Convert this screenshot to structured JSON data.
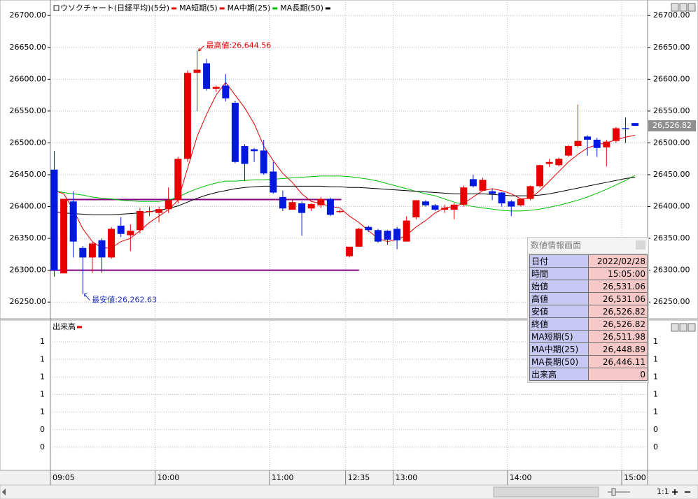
{
  "chart_data": {
    "type": "candlestick",
    "title": "ロウソクチャート(日経平均)(5分)",
    "up_color": "#e80000",
    "down_color": "#0018e0",
    "categories": [
      "09:05",
      null,
      null,
      null,
      null,
      null,
      null,
      null,
      null,
      null,
      null,
      "10:00",
      null,
      null,
      null,
      null,
      null,
      null,
      null,
      null,
      null,
      null,
      null,
      "11:00",
      null,
      null,
      null,
      null,
      null,
      null,
      null,
      "12:35",
      null,
      null,
      null,
      null,
      "13:00",
      null,
      null,
      null,
      null,
      null,
      null,
      null,
      null,
      null,
      null,
      null,
      "14:00",
      null,
      null,
      null,
      null,
      null,
      null,
      null,
      null,
      null,
      null,
      null,
      "15:00",
      null
    ],
    "open": [
      26458,
      26295,
      26408,
      26335,
      26320,
      26347,
      26320,
      26370,
      26355,
      26363,
      26392,
      26390,
      26396,
      26410,
      26475,
      26610,
      26625,
      26585,
      26590,
      26563,
      26495,
      26490,
      26488,
      26455,
      26415,
      26395,
      26405,
      26397,
      26402,
      26412,
      26392,
      26322,
      26337,
      26368,
      26363,
      26362,
      26365,
      26345,
      26383,
      26408,
      26402,
      26395,
      26395,
      26403,
      26443,
      26425,
      26424,
      26422,
      26408,
      26402,
      26412,
      26432,
      26467,
      26465,
      26480,
      26495,
      26510,
      26505,
      26493,
      26503,
      26523,
      26531.06
    ],
    "high": [
      26487,
      26412,
      26424,
      26338,
      26345,
      26350,
      26368,
      26383,
      26372,
      26398,
      26400,
      26400,
      26430,
      26478,
      26614,
      26644.56,
      26632,
      26590,
      26608,
      26566,
      26498,
      26492,
      26505,
      26470,
      26425,
      26410,
      26408,
      26405,
      26415,
      26414,
      26395,
      26337,
      26367,
      26370,
      26365,
      26363,
      26368,
      26385,
      26410,
      26410,
      26404,
      26403,
      26405,
      26433,
      26450,
      26445,
      26428,
      26423,
      26410,
      26413,
      26433,
      26466,
      26475,
      26477,
      26497,
      26560,
      26512,
      26508,
      26505,
      26525,
      26540,
      26531.06
    ],
    "low": [
      26290,
      26295,
      26320,
      26262.63,
      26296,
      26296,
      26318,
      26352,
      26330,
      26358,
      26385,
      26375,
      26390,
      26405,
      26470,
      26550,
      26582,
      26580,
      26565,
      26468,
      26440,
      26470,
      26450,
      26420,
      26393,
      26395,
      26354,
      26393,
      26398,
      26385,
      26390,
      26320,
      26337,
      26360,
      26343,
      26340,
      26333,
      26345,
      26380,
      26400,
      26393,
      26390,
      26380,
      26400,
      26430,
      26425,
      26410,
      26400,
      26385,
      26400,
      26410,
      26430,
      26462,
      26463,
      26478,
      26493,
      26480,
      26478,
      26463,
      26500,
      26500,
      26526.82
    ],
    "close": [
      26300,
      26412,
      26345,
      26320,
      26342,
      26320,
      26365,
      26357,
      26362,
      26393,
      26393,
      26396,
      26410,
      26475,
      26610,
      26615,
      26585,
      26588,
      26570,
      26470,
      26467,
      26487,
      26452,
      26422,
      26397,
      26407,
      26390,
      26404,
      26412,
      26387,
      26393,
      26337,
      26365,
      26363,
      26345,
      26348,
      26347,
      26378,
      26410,
      26402,
      26395,
      26398,
      26403,
      26430,
      26432,
      26442,
      26420,
      26405,
      26400,
      26412,
      26432,
      26465,
      26470,
      26475,
      26495,
      26503,
      26505,
      26492,
      26502,
      26523,
      26522,
      26526.82
    ],
    "moving_averages": [
      {
        "name": "MA短期(5)",
        "color": "#e00000",
        "values": [
          26425,
          26420,
          26395,
          26365,
          26345,
          26335,
          26335,
          26345,
          26350,
          26362,
          26375,
          26385,
          26395,
          26410,
          26460,
          26510,
          26545,
          26575,
          26595,
          26575,
          26555,
          26530,
          26495,
          26472,
          26452,
          26438,
          26420,
          26408,
          26405,
          26400,
          26398,
          26385,
          26375,
          26362,
          26350,
          26345,
          26348,
          26355,
          26368,
          26378,
          26390,
          26398,
          26400,
          26405,
          26415,
          26425,
          26428,
          26425,
          26420,
          26412,
          26413,
          26425,
          26440,
          26455,
          26470,
          26482,
          26492,
          26497,
          26500,
          26505,
          26509,
          26511.98
        ]
      },
      {
        "name": "MA中期(25)",
        "color": "#00c000",
        "values": [
          26425,
          26422,
          26420,
          26418,
          26415,
          26413,
          26412,
          26410,
          26409,
          26408,
          26408,
          26408,
          26410,
          26415,
          26422,
          26428,
          26433,
          26437,
          26440,
          26440,
          26441,
          26442,
          26442,
          26443,
          26444,
          26445,
          26446,
          26447,
          26448,
          26448,
          26448,
          26447,
          26445,
          26443,
          26440,
          26436,
          26432,
          26428,
          26424,
          26420,
          26417,
          26412,
          26407,
          26403,
          26400,
          26398,
          26396,
          26394,
          26393,
          26393,
          26394,
          26396,
          26399,
          26402,
          26406,
          26410,
          26415,
          26421,
          26427,
          26434,
          26441,
          26448.89
        ]
      },
      {
        "name": "MA長期(50)",
        "color": "#000000",
        "values": [
          26392,
          26390,
          26389,
          26388,
          26387,
          26387,
          26387,
          26388,
          26389,
          26390,
          26392,
          26394,
          26397,
          26401,
          26407,
          26413,
          26418,
          26422,
          26425,
          26428,
          26430,
          26431,
          26432,
          26432,
          26432,
          26432,
          26432,
          26432,
          26432,
          26431,
          26431,
          26430,
          26430,
          26429,
          26428,
          26427,
          26426,
          26425,
          26424,
          26423,
          26422,
          26421,
          26420,
          26420,
          26420,
          26420,
          26419,
          26418,
          26417,
          26417,
          26417,
          26418,
          26420,
          26423,
          26426,
          26429,
          26432,
          26435,
          26438,
          26441,
          26444,
          26446.11
        ]
      }
    ],
    "horizontal_lines": [
      {
        "value": 26411,
        "color": "#800080"
      },
      {
        "value": 26300,
        "color": "#800080"
      }
    ],
    "annotations": [
      {
        "label": "最高値:26,644.56",
        "value": 26644.56,
        "color": "#e00000"
      },
      {
        "label": "最安値:26,262.63",
        "value": 26262.63,
        "color": "#2030c0"
      }
    ],
    "last_price": {
      "value": 26526.82,
      "label": "26,526.82"
    },
    "ylim": [
      26225,
      26720
    ],
    "yticks": [
      {
        "value": 26700,
        "label": "26700.00"
      },
      {
        "value": 26650,
        "label": "26650.00"
      },
      {
        "value": 26600,
        "label": "26600.00"
      },
      {
        "value": 26550,
        "label": "26550.00"
      },
      {
        "value": 26500,
        "label": "26500.00"
      },
      {
        "value": 26450,
        "label": "26450.00"
      },
      {
        "value": 26400,
        "label": "26400.00"
      },
      {
        "value": 26350,
        "label": "26350.00"
      },
      {
        "value": 26300,
        "label": "26300.00"
      },
      {
        "value": 26250,
        "label": "26250.00"
      }
    ],
    "grid": true,
    "volume": {
      "title": "出来高",
      "color": "#e00000",
      "values": [
        0,
        0,
        0,
        0,
        0,
        0,
        0,
        0,
        0,
        0,
        0,
        0,
        0,
        0,
        0,
        0,
        0,
        0,
        0,
        0,
        0,
        0,
        0,
        0,
        0,
        0,
        0,
        0,
        0,
        0,
        0,
        0,
        0,
        0,
        0,
        0,
        0,
        0,
        0,
        0,
        0,
        0,
        0,
        0,
        0,
        0,
        0,
        0,
        0,
        0,
        0,
        0,
        0,
        0,
        0,
        0,
        0,
        0,
        0,
        0,
        0,
        0
      ],
      "ylim": [
        0,
        1.6
      ],
      "yticks": [
        {
          "value": 1.4,
          "label": "1"
        },
        {
          "value": 1.2,
          "label": "1"
        },
        {
          "value": 1,
          "label": "1"
        },
        {
          "value": 0.8,
          "label": "1"
        },
        {
          "value": 0.6,
          "label": "1"
        },
        {
          "value": 0.4,
          "label": "0"
        },
        {
          "value": 0.2,
          "label": "0"
        }
      ]
    }
  },
  "info_panel": {
    "title": "数値情報画面",
    "rows": [
      {
        "label": "日付",
        "value": "2022/02/28"
      },
      {
        "label": "時間",
        "value": "15:05:00"
      },
      {
        "label": "始値",
        "value": "26,531.06"
      },
      {
        "label": "高値",
        "value": "26,531.06"
      },
      {
        "label": "安値",
        "value": "26,526.82"
      },
      {
        "label": "終値",
        "value": "26,526.82"
      },
      {
        "label": "MA短期(5)",
        "value": "26,511.98"
      },
      {
        "label": "MA中期(25)",
        "value": "26,448.89"
      },
      {
        "label": "MA長期(50)",
        "value": "26,446.11"
      },
      {
        "label": "出来高",
        "value": "0"
      }
    ]
  },
  "scroll_controls": {
    "zoom": "1:1"
  }
}
